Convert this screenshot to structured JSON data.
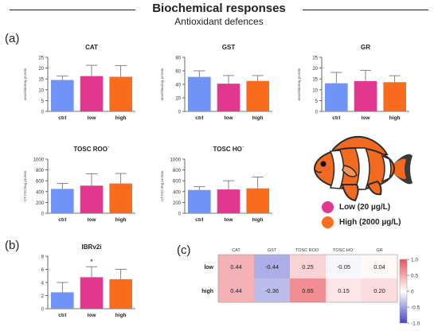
{
  "header": {
    "title": "Biochemical responses",
    "subtitle": "Antioxidant defences"
  },
  "panels": {
    "a": "(a)",
    "b": "(b)",
    "c": "(c)"
  },
  "colors": {
    "ctrl": "#6f93f7",
    "low": "#e2378f",
    "high": "#f96c1e",
    "hm_pos": "#e8515a",
    "hm_neg": "#4444c8"
  },
  "legend": {
    "low": "Low (20 µg/L)",
    "high": "High (2000 µg/L)"
  },
  "chart_data": [
    {
      "type": "bar",
      "title": "CAT",
      "ylabel": "umol/min/mg protein",
      "categories": [
        "ctrl",
        "low",
        "high"
      ],
      "values": [
        14.5,
        16.3,
        16.0
      ],
      "errors": [
        1.8,
        5.0,
        5.2
      ],
      "ylim": [
        0,
        25
      ],
      "yticks": [
        0,
        5,
        10,
        15,
        20,
        25
      ]
    },
    {
      "type": "bar",
      "title": "GST",
      "ylabel": "nmol/min/mg protein",
      "categories": [
        "ctrl",
        "low",
        "high"
      ],
      "values": [
        51,
        41,
        45
      ],
      "errors": [
        9,
        12,
        8
      ],
      "ylim": [
        0,
        80
      ],
      "yticks": [
        0,
        20,
        40,
        60,
        80
      ]
    },
    {
      "type": "bar",
      "title": "GR",
      "ylabel": "nmol/min/mg protein",
      "categories": [
        "ctrl",
        "low",
        "high"
      ],
      "values": [
        13,
        14,
        13.5
      ],
      "errors": [
        5,
        5,
        3
      ],
      "ylim": [
        0,
        25
      ],
      "yticks": [
        0,
        5,
        10,
        15,
        20,
        25
      ]
    },
    {
      "type": "bar",
      "title": "TOSC ROO˙",
      "ylabel": "UTOSC/mg protein",
      "categories": [
        "ctrl",
        "low",
        "high"
      ],
      "values": [
        450,
        510,
        550
      ],
      "errors": [
        100,
        220,
        185
      ],
      "ylim": [
        0,
        1000
      ],
      "yticks": [
        0,
        200,
        400,
        600,
        800,
        1000
      ]
    },
    {
      "type": "bar",
      "title": "TOSC HO˙",
      "ylabel": "UTOSC/mg protein",
      "categories": [
        "ctrl",
        "low",
        "high"
      ],
      "values": [
        430,
        440,
        460
      ],
      "errors": [
        60,
        160,
        210
      ],
      "ylim": [
        0,
        1000
      ],
      "yticks": [
        0,
        200,
        400,
        600,
        800,
        1000
      ]
    },
    {
      "type": "bar",
      "title": "IBRv2i",
      "ylabel": "",
      "categories": [
        "ctrl",
        "low",
        "high"
      ],
      "values": [
        2.5,
        4.8,
        4.5
      ],
      "errors": [
        1.5,
        1.6,
        1.5
      ],
      "annotations": [
        "",
        "*",
        ""
      ],
      "ylim": [
        0,
        8
      ],
      "yticks": [
        0,
        2,
        4,
        6,
        8
      ]
    },
    {
      "type": "heatmap",
      "columns": [
        "CAT",
        "GST",
        "TOSC ROO˙",
        "TOSC HO˙",
        "GR"
      ],
      "rows": [
        "low",
        "high"
      ],
      "values": [
        [
          0.44,
          -0.44,
          0.25,
          -0.05,
          0.04
        ],
        [
          0.44,
          -0.36,
          0.65,
          0.15,
          0.2
        ]
      ],
      "labels": [
        [
          "0.44",
          "-0.44",
          "0.25",
          "-0.05",
          "0.04"
        ],
        [
          "0.44",
          "-0.36",
          "0.65",
          "0.15",
          "0.20"
        ]
      ],
      "colorbar": {
        "range": [
          -1,
          1
        ],
        "ticks": [
          "1.0",
          "0.5",
          "0",
          "-0.5",
          "-1.0"
        ],
        "tick_values": [
          1,
          0.5,
          0,
          -0.5,
          -1
        ]
      }
    }
  ]
}
